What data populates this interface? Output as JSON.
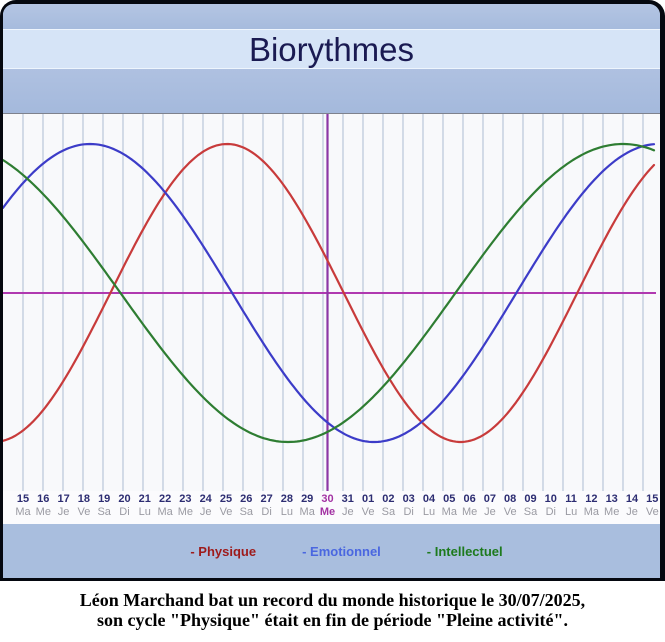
{
  "window": {
    "title": "Biorythmes"
  },
  "chart_data": {
    "type": "line",
    "title": "Biorythmes",
    "x_labels_dates": [
      "15",
      "16",
      "17",
      "18",
      "19",
      "20",
      "21",
      "22",
      "23",
      "24",
      "25",
      "26",
      "27",
      "28",
      "29",
      "30",
      "31",
      "01",
      "02",
      "03",
      "04",
      "05",
      "06",
      "07",
      "08",
      "09",
      "10",
      "11",
      "12",
      "13",
      "14",
      "15"
    ],
    "x_labels_days": [
      "Ma",
      "Me",
      "Je",
      "Ve",
      "Sa",
      "Di",
      "Lu",
      "Ma",
      "Me",
      "Je",
      "Ve",
      "Sa",
      "Di",
      "Lu",
      "Ma",
      "Me",
      "Je",
      "Ve",
      "Sa",
      "Di",
      "Lu",
      "Ma",
      "Me",
      "Je",
      "Ve",
      "Sa",
      "Di",
      "Lu",
      "Ma",
      "Me",
      "Je",
      "Ve"
    ],
    "highlight_index": 15,
    "highlight_date": "30",
    "highlight_day": "Me",
    "ylim": [
      -1,
      1
    ],
    "grid": true,
    "series": [
      {
        "name": "Physique",
        "color": "#c83b3b",
        "period_days": 23,
        "phase_days_at_start": 18.55
      },
      {
        "name": "Emotionnel",
        "color": "#3c3cc8",
        "period_days": 28,
        "phase_days_at_start": 3.55
      },
      {
        "name": "Intellectuel",
        "color": "#2e7d32",
        "period_days": 33,
        "phase_days_at_start": 11.55
      }
    ],
    "colors": {
      "plot_bg": "#f8f9fb",
      "gridline": "#c9d3e2",
      "zero_axis": "#b039b0",
      "today_line": "#8c36a5"
    }
  },
  "legend": {
    "items": [
      {
        "label": "- Physique",
        "color": "#9e1b1b"
      },
      {
        "label": "- Emotionnel",
        "color": "#4a67e0"
      },
      {
        "label": "- Intellectuel",
        "color": "#1d7a1d"
      }
    ]
  },
  "caption": {
    "line1": "Léon Marchand bat un record du monde historique le 30/07/2025,",
    "line2": "son cycle \"Physique\" était en fin de période \"Pleine activité\"."
  }
}
